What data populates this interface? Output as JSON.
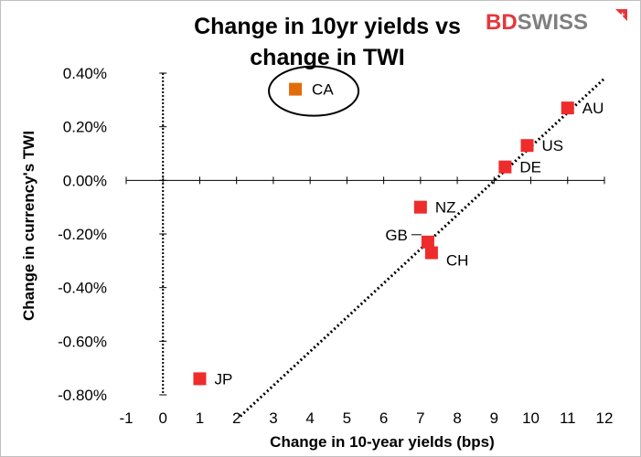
{
  "brand": {
    "bd": "BD",
    "swiss": "SWISS",
    "bd_color": "#e8363a",
    "swiss_color": "#7f7f7f"
  },
  "chart_data": {
    "type": "scatter",
    "title": "Change in 10yr yields vs change in TWI",
    "title_lines": [
      "Change in 10yr yields vs",
      "change in TWI"
    ],
    "xlabel": "Change in 10-year yields (bps)",
    "ylabel": "Change in currency's  TWI",
    "xlim": [
      -1,
      12
    ],
    "ylim": [
      -0.8,
      0.4
    ],
    "x_ticks": [
      -1,
      0,
      1,
      2,
      3,
      4,
      5,
      6,
      7,
      8,
      9,
      10,
      11,
      12
    ],
    "y_ticks": [
      0.4,
      0.2,
      0.0,
      -0.2,
      -0.4,
      -0.6,
      -0.8
    ],
    "y_tick_labels": [
      "0.40%",
      "0.20%",
      "0.00%",
      "-0.20%",
      "-0.40%",
      "-0.60%",
      "-0.80%"
    ],
    "grid": false,
    "points": [
      {
        "label": "CA",
        "x": 3.6,
        "y": 0.34,
        "color": "#e36c0a",
        "highlighted": true
      },
      {
        "label": "AU",
        "x": 11.0,
        "y": 0.27,
        "color": "#ee2c2c"
      },
      {
        "label": "US",
        "x": 9.9,
        "y": 0.13,
        "color": "#ee2c2c"
      },
      {
        "label": "DE",
        "x": 9.3,
        "y": 0.05,
        "color": "#ee2c2c"
      },
      {
        "label": "NZ",
        "x": 7.0,
        "y": -0.1,
        "color": "#ee2c2c"
      },
      {
        "label": "GB",
        "x": 7.2,
        "y": -0.23,
        "color": "#ee2c2c"
      },
      {
        "label": "CH",
        "x": 7.3,
        "y": -0.27,
        "color": "#ee2c2c"
      },
      {
        "label": "JP",
        "x": 1.0,
        "y": -0.74,
        "color": "#ee2c2c"
      }
    ],
    "trendline": {
      "style": "dotted",
      "x": [
        2.1,
        12.0
      ],
      "y": [
        -0.88,
        0.38
      ]
    }
  }
}
